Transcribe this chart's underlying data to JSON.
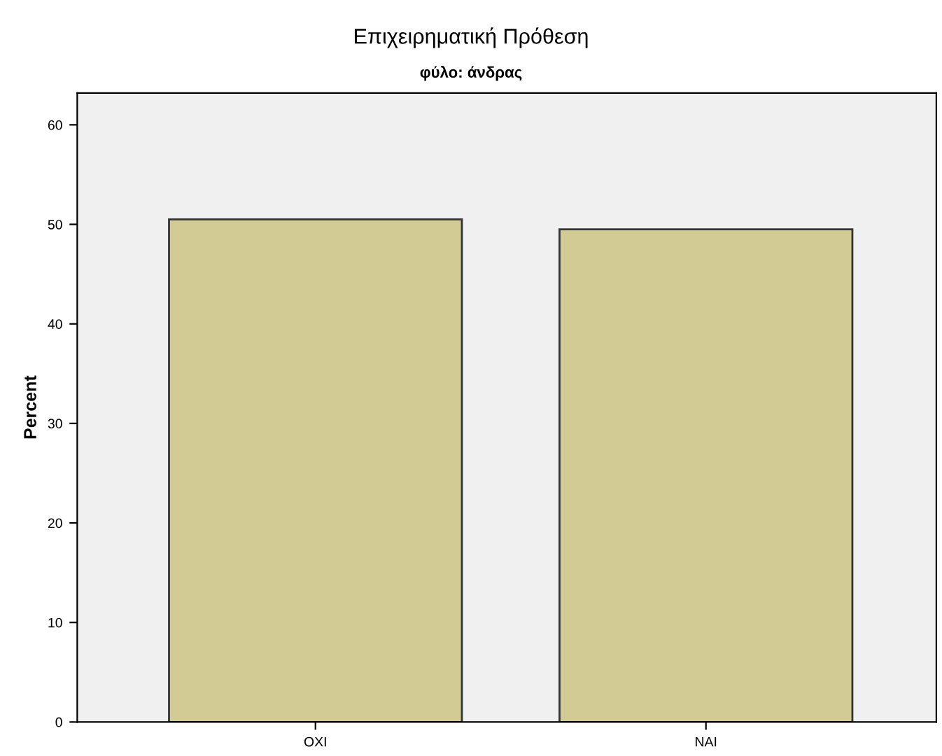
{
  "chart_data": {
    "type": "bar",
    "title": "Επιχειρηματική Πρόθεση",
    "subtitle": "φύλο: άνδρας",
    "ylabel": "Percent",
    "categories": [
      "ΟΧΙ",
      "ΝΑΙ"
    ],
    "series": [
      {
        "color": "#d2cc94",
        "values": [
          50.5,
          49.5
        ]
      }
    ],
    "ylim": [
      0,
      63.2
    ],
    "yticks": [
      0,
      10,
      20,
      30,
      40,
      50,
      60
    ],
    "grid": false,
    "legend": false
  }
}
